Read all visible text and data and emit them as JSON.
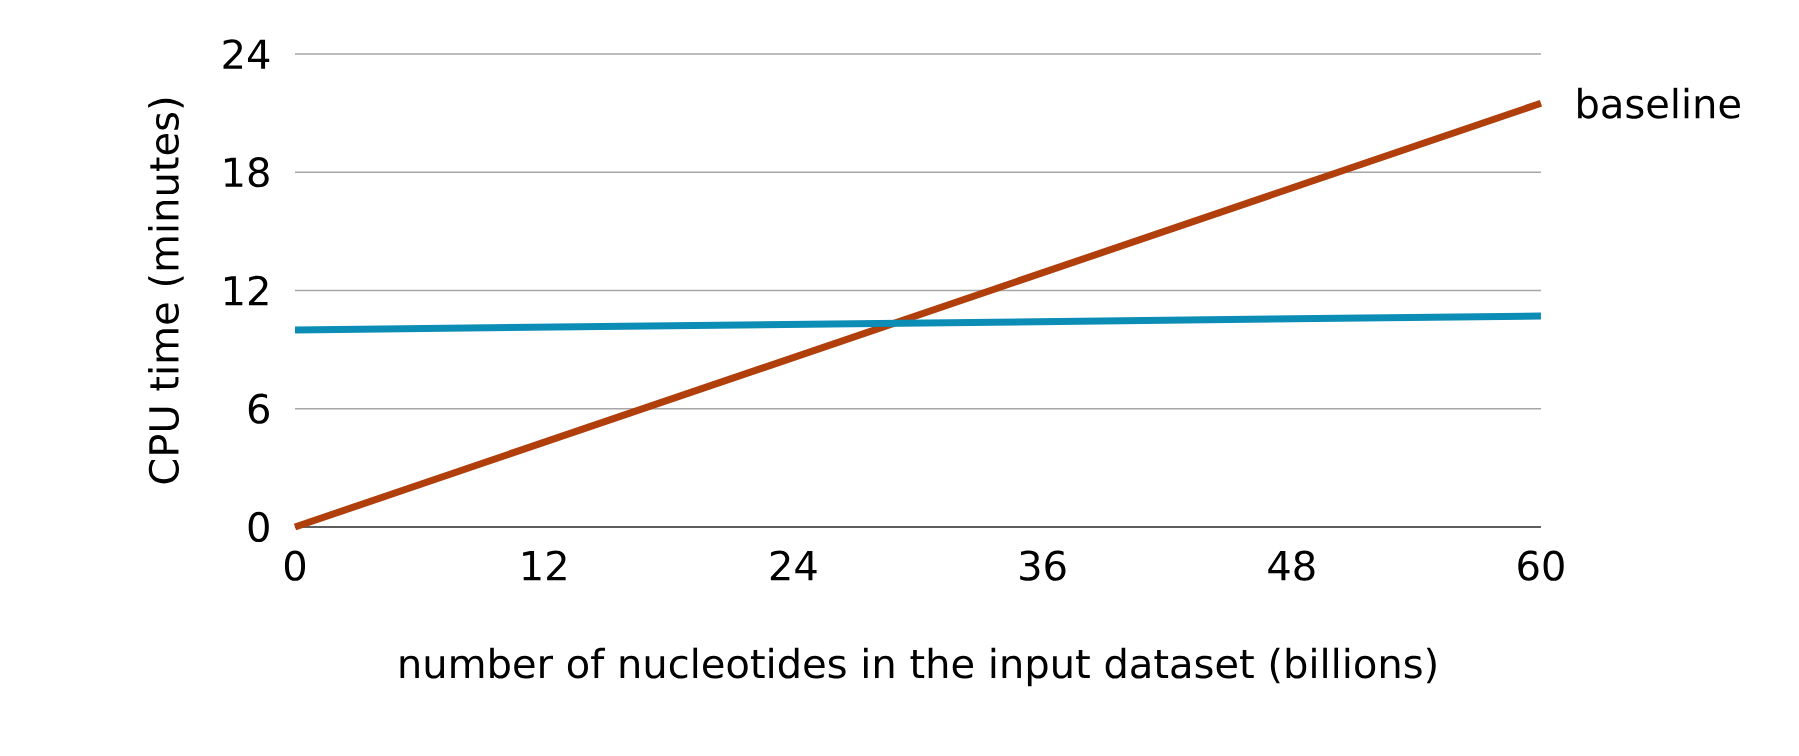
{
  "chart_data": {
    "type": "line",
    "xlabel": "number of nucleotides in the input dataset (billions)",
    "ylabel": "CPU time (minutes)",
    "x": [
      0,
      60
    ],
    "series": [
      {
        "name": "baseline",
        "color": "#b13f0c",
        "values": [
          0,
          21.5
        ]
      },
      {
        "color": "#0b8db6",
        "values": [
          10,
          10.7
        ]
      }
    ],
    "xlim": [
      0,
      60
    ],
    "ylim": [
      0,
      24
    ],
    "xticks": [
      0,
      12,
      24,
      36,
      48,
      60
    ],
    "yticks": [
      0,
      6,
      12,
      18,
      24
    ],
    "grid": "y",
    "marker": "none",
    "line_style": "solid"
  }
}
